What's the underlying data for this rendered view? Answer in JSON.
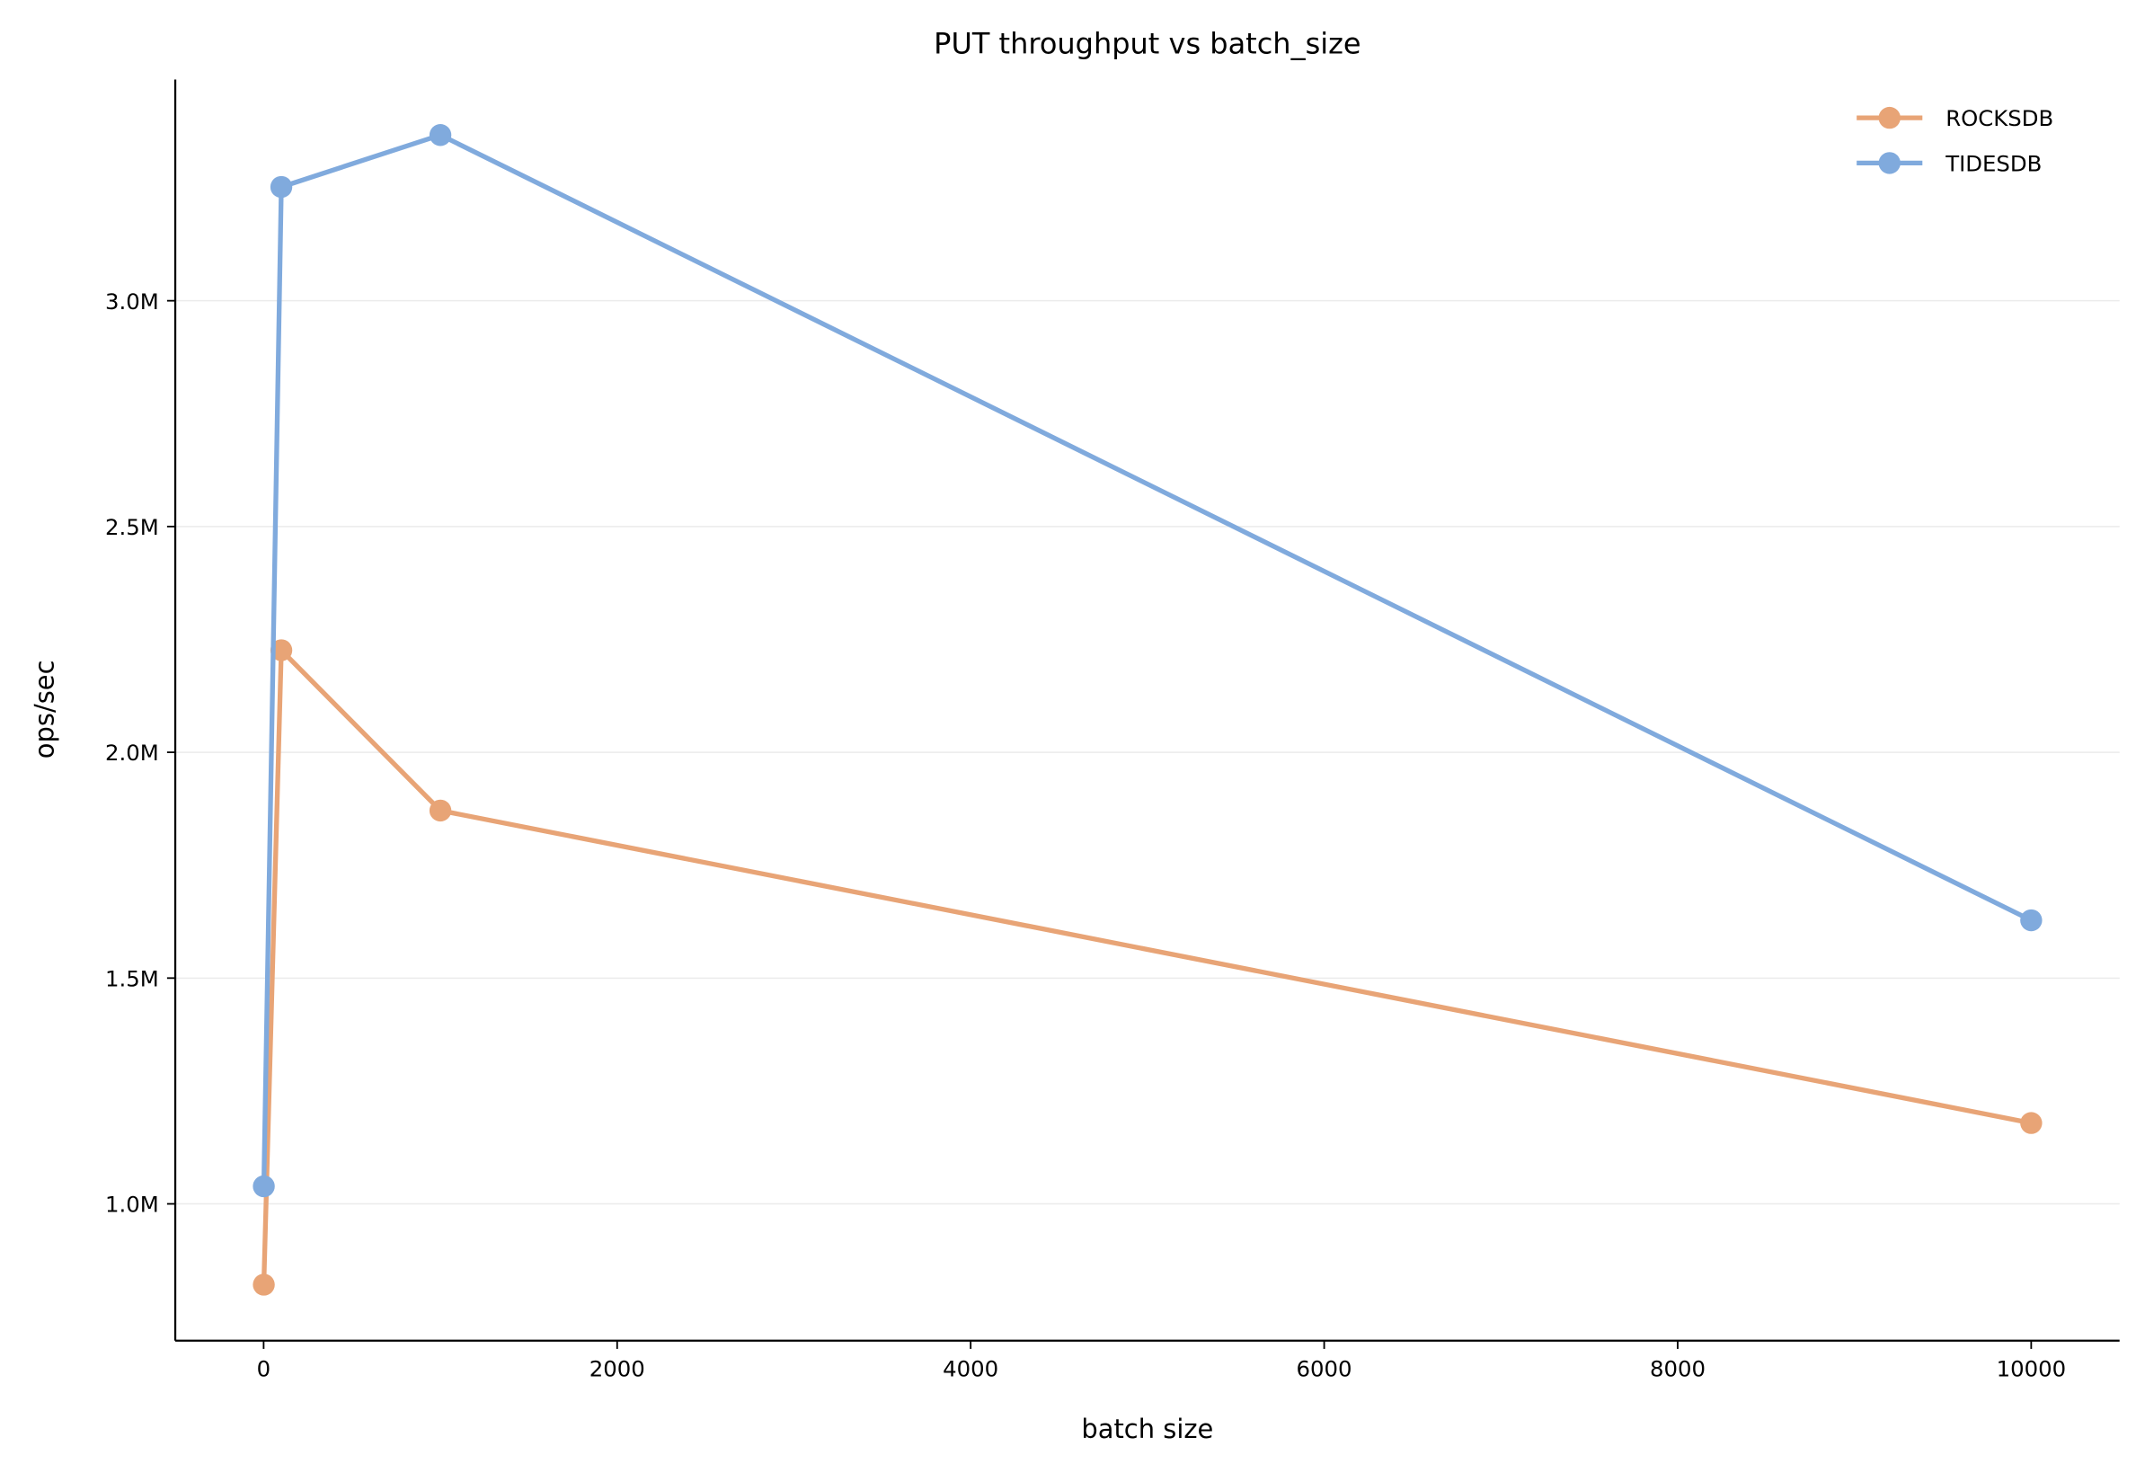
{
  "chart_data": {
    "type": "line",
    "title": "PUT throughput vs batch_size",
    "xlabel": "batch size",
    "ylabel": "ops/sec",
    "xlim": [
      -500,
      10500
    ],
    "ylim": [
      697000,
      3490000
    ],
    "xticks": [
      0,
      2000,
      4000,
      6000,
      8000,
      10000
    ],
    "xtick_labels": [
      "0",
      "2000",
      "4000",
      "6000",
      "8000",
      "10000"
    ],
    "yticks": [
      1000000,
      1500000,
      2000000,
      2500000,
      3000000
    ],
    "ytick_labels": [
      "1.0M",
      "1.5M",
      "2.0M",
      "2.5M",
      "3.0M"
    ],
    "grid": "horizontal",
    "legend": "top-right",
    "x": [
      1,
      100,
      1000,
      10000
    ],
    "series": [
      {
        "name": "ROCKSDB",
        "color": "#E8A476",
        "values": [
          821000,
          2226000,
          1871000,
          1179000
        ]
      },
      {
        "name": "TIDESDB",
        "color": "#80AADD",
        "values": [
          1039000,
          3252000,
          3367000,
          1628000
        ]
      }
    ]
  }
}
